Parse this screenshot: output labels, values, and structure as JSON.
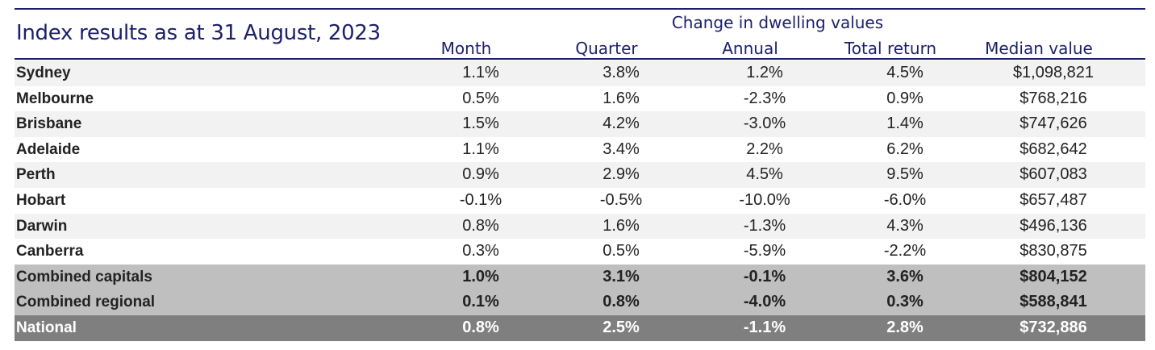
{
  "title": "Index results as at 31 August, 2023",
  "group_header": "Change in dwelling values",
  "columns": [
    "Month",
    "Quarter",
    "Annual",
    "Total return",
    "Median value"
  ],
  "rows": [
    {
      "name": "Sydney",
      "month": "1.1%",
      "quarter": "3.8%",
      "annual": "1.2%",
      "total": "4.5%",
      "median": "$1,098,821"
    },
    {
      "name": "Melbourne",
      "month": "0.5%",
      "quarter": "1.6%",
      "annual": "-2.3%",
      "total": "0.9%",
      "median": "$768,216"
    },
    {
      "name": "Brisbane",
      "month": "1.5%",
      "quarter": "4.2%",
      "annual": "-3.0%",
      "total": "1.4%",
      "median": "$747,626"
    },
    {
      "name": "Adelaide",
      "month": "1.1%",
      "quarter": "3.4%",
      "annual": "2.2%",
      "total": "6.2%",
      "median": "$682,642"
    },
    {
      "name": "Perth",
      "month": "0.9%",
      "quarter": "2.9%",
      "annual": "4.5%",
      "total": "9.5%",
      "median": "$607,083"
    },
    {
      "name": "Hobart",
      "month": "-0.1%",
      "quarter": "-0.5%",
      "annual": "-10.0%",
      "total": "-6.0%",
      "median": "$657,487"
    },
    {
      "name": "Darwin",
      "month": "0.8%",
      "quarter": "1.6%",
      "annual": "-1.3%",
      "total": "4.3%",
      "median": "$496,136"
    },
    {
      "name": "Canberra",
      "month": "0.3%",
      "quarter": "0.5%",
      "annual": "-5.9%",
      "total": "-2.2%",
      "median": "$830,875"
    },
    {
      "name": "Combined capitals",
      "month": "1.0%",
      "quarter": "3.1%",
      "annual": "-0.1%",
      "total": "3.6%",
      "median": "$804,152"
    },
    {
      "name": "Combined regional",
      "month": "0.1%",
      "quarter": "0.8%",
      "annual": "-4.0%",
      "total": "0.3%",
      "median": "$588,841"
    },
    {
      "name": "National",
      "month": "0.8%",
      "quarter": "2.5%",
      "annual": "-1.1%",
      "total": "2.8%",
      "median": "$732,886"
    }
  ],
  "colors": {
    "heading": "#1b1f6b",
    "shade": "#f2f2f2",
    "combined": "#bfbfbf",
    "national": "#7f7f7f"
  }
}
